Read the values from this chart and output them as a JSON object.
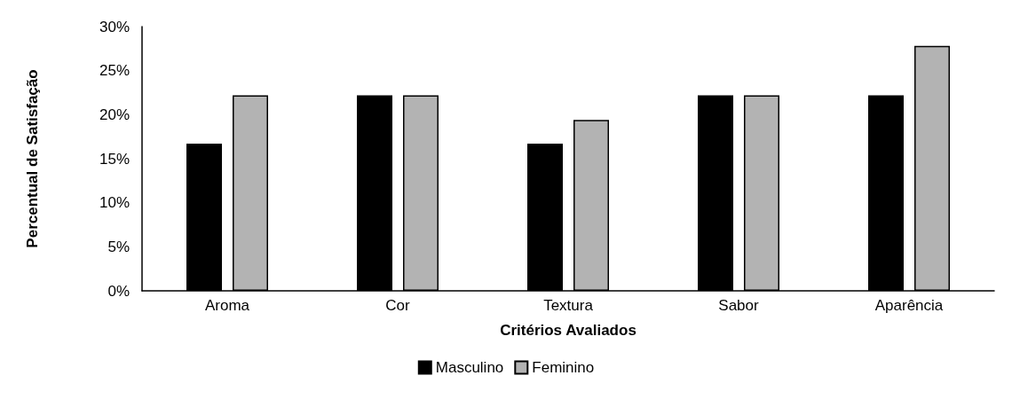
{
  "chart_data": {
    "type": "bar",
    "xlabel": "Critérios Avaliados",
    "ylabel": "Percentual de Satisfação",
    "categories": [
      "Aroma",
      "Cor",
      "Textura",
      "Sabor",
      "Aparência"
    ],
    "series": [
      {
        "name": "Masculino",
        "color": "#000000",
        "values": [
          16.7,
          22.2,
          16.7,
          22.2,
          22.2
        ]
      },
      {
        "name": "Feminino",
        "color": "#b3b3b3",
        "values": [
          22.2,
          22.2,
          19.4,
          22.2,
          27.8
        ]
      }
    ],
    "ylim": [
      0,
      30
    ],
    "yticks": [
      {
        "value": 0,
        "label": "0%"
      },
      {
        "value": 5,
        "label": "5%"
      },
      {
        "value": 10,
        "label": "10%"
      },
      {
        "value": 15,
        "label": "15%"
      },
      {
        "value": 20,
        "label": "20%"
      },
      {
        "value": 25,
        "label": "25%"
      },
      {
        "value": 30,
        "label": "30%"
      }
    ],
    "grid": false,
    "legend": "bottom"
  }
}
